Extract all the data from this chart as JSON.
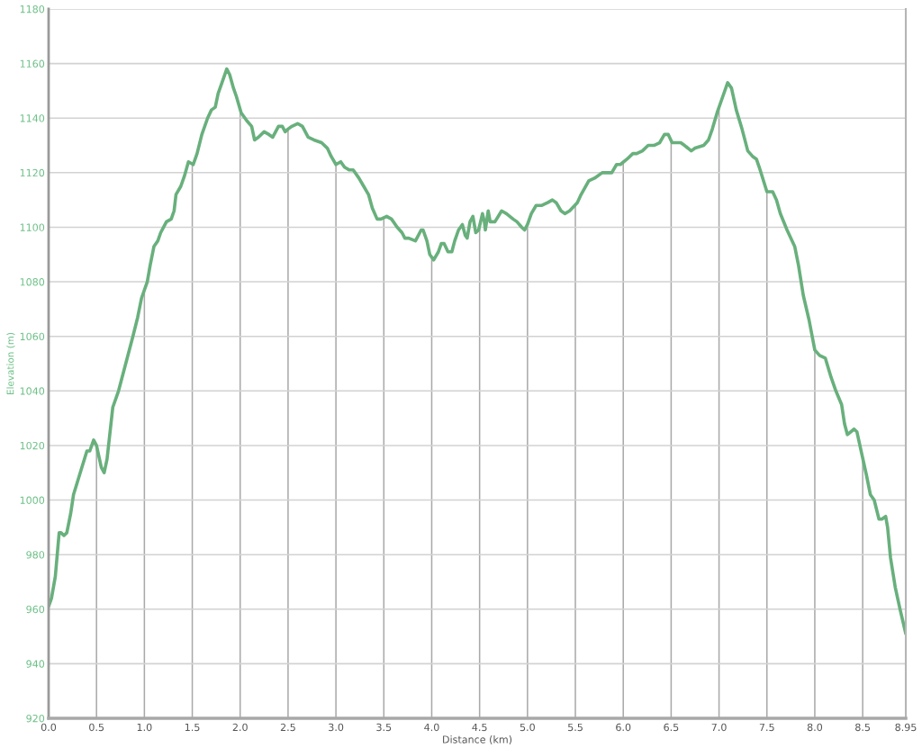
{
  "chart_data": {
    "type": "line",
    "xlabel": "Distance (km)",
    "ylabel": "Elevation (m)",
    "x": [
      0.0,
      0.03,
      0.07,
      0.11,
      0.13,
      0.16,
      0.19,
      0.23,
      0.26,
      0.33,
      0.4,
      0.43,
      0.47,
      0.5,
      0.55,
      0.58,
      0.61,
      0.67,
      0.73,
      0.82,
      0.88,
      0.93,
      0.97,
      1.03,
      1.06,
      1.1,
      1.14,
      1.17,
      1.23,
      1.28,
      1.31,
      1.33,
      1.38,
      1.42,
      1.46,
      1.51,
      1.55,
      1.6,
      1.66,
      1.7,
      1.74,
      1.77,
      1.81,
      1.86,
      1.89,
      1.93,
      1.96,
      2.01,
      2.07,
      2.12,
      2.15,
      2.19,
      2.25,
      2.3,
      2.34,
      2.4,
      2.44,
      2.47,
      2.5,
      2.54,
      2.6,
      2.65,
      2.68,
      2.71,
      2.77,
      2.85,
      2.91,
      2.95,
      3.0,
      3.05,
      3.09,
      3.14,
      3.18,
      3.24,
      3.29,
      3.34,
      3.38,
      3.43,
      3.47,
      3.53,
      3.58,
      3.64,
      3.69,
      3.72,
      3.76,
      3.83,
      3.89,
      3.91,
      3.95,
      3.98,
      4.02,
      4.07,
      4.1,
      4.13,
      4.17,
      4.21,
      4.24,
      4.28,
      4.32,
      4.35,
      4.37,
      4.4,
      4.43,
      4.46,
      4.49,
      4.53,
      4.55,
      4.56,
      4.59,
      4.61,
      4.66,
      4.73,
      4.78,
      4.85,
      4.89,
      4.94,
      4.97,
      5.0,
      5.04,
      5.09,
      5.15,
      5.21,
      5.26,
      5.3,
      5.35,
      5.39,
      5.44,
      5.52,
      5.56,
      5.64,
      5.7,
      5.78,
      5.85,
      5.88,
      5.93,
      5.97,
      6.04,
      6.1,
      6.14,
      6.2,
      6.26,
      6.32,
      6.38,
      6.43,
      6.47,
      6.51,
      6.55,
      6.6,
      6.64,
      6.71,
      6.75,
      6.84,
      6.89,
      6.93,
      6.98,
      7.04,
      7.09,
      7.13,
      7.18,
      7.24,
      7.3,
      7.35,
      7.39,
      7.42,
      7.5,
      7.56,
      7.6,
      7.64,
      7.71,
      7.79,
      7.83,
      7.88,
      7.94,
      8.0,
      8.05,
      8.11,
      8.17,
      8.22,
      8.28,
      8.31,
      8.34,
      8.41,
      8.44,
      8.49,
      8.54,
      8.58,
      8.62,
      8.67,
      8.7,
      8.74,
      8.76,
      8.79,
      8.84,
      8.89,
      8.95
    ],
    "series": [
      {
        "color": "#68b07c",
        "values": [
          961,
          964,
          972,
          988,
          988,
          987,
          988,
          995,
          1002,
          1010,
          1018,
          1018,
          1022,
          1020,
          1012,
          1010,
          1015,
          1034,
          1040,
          1052,
          1060,
          1067,
          1074,
          1080,
          1086,
          1093,
          1095,
          1098,
          1102,
          1103,
          1106,
          1112,
          1115,
          1119,
          1124,
          1123,
          1127,
          1134,
          1140,
          1143,
          1144,
          1149,
          1153,
          1158,
          1156,
          1151,
          1148,
          1142,
          1139,
          1137,
          1132,
          1133,
          1135,
          1134,
          1133,
          1137,
          1137,
          1135,
          1136,
          1137,
          1138,
          1137,
          1135,
          1133,
          1132,
          1131,
          1129,
          1126,
          1123,
          1124,
          1122,
          1121,
          1121,
          1118,
          1115,
          1112,
          1107,
          1103,
          1103,
          1104,
          1103,
          1100,
          1098,
          1096,
          1096,
          1095,
          1099,
          1099,
          1095,
          1090,
          1088,
          1091,
          1094,
          1094,
          1091,
          1091,
          1095,
          1099,
          1101,
          1097,
          1096,
          1102,
          1104,
          1098,
          1099,
          1105,
          1102,
          1099,
          1106,
          1102,
          1102,
          1106,
          1105,
          1103,
          1102,
          1100,
          1099,
          1101,
          1105,
          1108,
          1108,
          1109,
          1110,
          1109,
          1106,
          1105,
          1106,
          1109,
          1112,
          1117,
          1118,
          1120,
          1120,
          1120,
          1123,
          1123,
          1125,
          1127,
          1127,
          1128,
          1130,
          1130,
          1131,
          1134,
          1134,
          1131,
          1131,
          1131,
          1130,
          1128,
          1129,
          1130,
          1132,
          1136,
          1142,
          1148,
          1153,
          1151,
          1143,
          1136,
          1128,
          1126,
          1125,
          1122,
          1113,
          1113,
          1110,
          1105,
          1099,
          1093,
          1086,
          1075,
          1066,
          1055,
          1053,
          1052,
          1045,
          1040,
          1035,
          1028,
          1024,
          1026,
          1025,
          1017,
          1009,
          1002,
          1000,
          993,
          993,
          994,
          990,
          979,
          968,
          960,
          951
        ]
      }
    ],
    "xlim": [
      0,
      8.95
    ],
    "xticks": [
      {
        "value": 0,
        "label": "0.0"
      },
      0.5,
      {
        "value": 1,
        "label": "1.0"
      },
      1.5,
      {
        "value": 2,
        "label": "2.0"
      },
      2.5,
      {
        "value": 3,
        "label": "3.0"
      },
      3.5,
      {
        "value": 4,
        "label": "4.0"
      },
      4.5,
      {
        "value": 5,
        "label": "5.0"
      },
      5.5,
      {
        "value": 6,
        "label": "6.0"
      },
      6.5,
      {
        "value": 7,
        "label": "7.0"
      },
      7.5,
      {
        "value": 8,
        "label": "8.0"
      },
      8.5,
      8.95
    ],
    "ylim": [
      920,
      1180
    ],
    "yticks": [
      920,
      940,
      960,
      980,
      1000,
      1020,
      1040,
      1060,
      1080,
      1100,
      1120,
      1140,
      1160,
      1180
    ],
    "grid": true,
    "line_style": "solid"
  }
}
